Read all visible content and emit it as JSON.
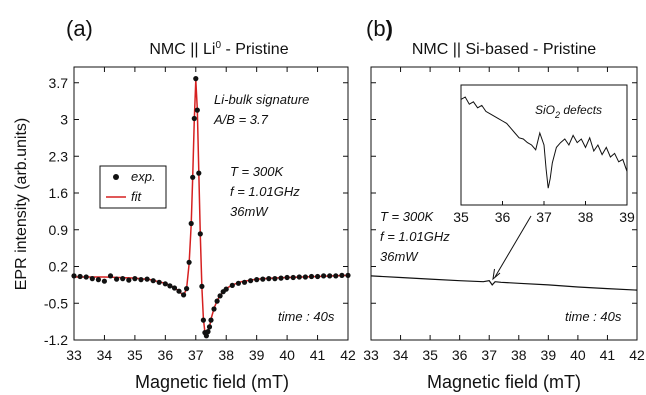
{
  "chart_data": [
    {
      "panel_label": "(a)",
      "title_prefix": "NMC || Li",
      "title_sup": "0",
      "title_suffix": " - Pristine",
      "type": "line",
      "xlabel": "Magnetic field (mT)",
      "ylabel": "EPR intensity (arb.units)",
      "xlim": [
        33,
        42
      ],
      "ylim": [
        -1.2,
        4.0
      ],
      "xticks": [
        33,
        34,
        35,
        36,
        37,
        38,
        39,
        40,
        41,
        42
      ],
      "yticks": [
        -1.2,
        -0.5,
        0.2,
        0.9,
        1.6,
        2.3,
        3,
        3.7
      ],
      "ytick_labels": [
        "-1.2",
        "-0.5",
        "0.2",
        "0.9",
        "1.6",
        "2.3",
        "3",
        "3.7"
      ],
      "legend": {
        "position": "center-left",
        "entries": [
          {
            "label": "exp.",
            "color": "#111111",
            "marker": "dot"
          },
          {
            "label": "fit",
            "color": "#d62020",
            "marker": "line"
          }
        ]
      },
      "annotations": {
        "signature_line1": "Li-bulk signature",
        "signature_line2": "A/B = 3.7",
        "temp": "T = 300K",
        "freq": "f = 1.01GHz",
        "power": "36mW",
        "time": "time : 40s"
      },
      "series": [
        {
          "name": "fit",
          "color": "#d62020",
          "x": [
            33.0,
            33.5,
            34.0,
            34.5,
            35.0,
            35.5,
            36.0,
            36.3,
            36.5,
            36.6,
            36.7,
            36.78,
            36.85,
            36.9,
            36.95,
            37.0,
            37.05,
            37.1,
            37.15,
            37.2,
            37.25,
            37.3,
            37.35,
            37.4,
            37.45,
            37.5,
            37.6,
            37.7,
            37.8,
            38.0,
            38.2,
            38.5,
            39.0,
            39.5,
            40.0,
            40.5,
            41.0,
            41.5,
            42.0
          ],
          "y": [
            0.0,
            0.0,
            0.0,
            -0.01,
            -0.02,
            -0.05,
            -0.12,
            -0.2,
            -0.3,
            -0.35,
            -0.22,
            0.25,
            1.0,
            1.9,
            3.0,
            3.75,
            3.2,
            2.0,
            0.8,
            -0.2,
            -0.8,
            -1.05,
            -1.1,
            -1.05,
            -0.95,
            -0.8,
            -0.6,
            -0.45,
            -0.35,
            -0.22,
            -0.15,
            -0.09,
            -0.04,
            -0.02,
            -0.01,
            0.0,
            0.01,
            0.02,
            0.03
          ]
        },
        {
          "name": "exp.",
          "color": "#111111",
          "x": [
            33.0,
            33.2,
            33.4,
            33.6,
            33.8,
            34.0,
            34.2,
            34.4,
            34.6,
            34.8,
            35.0,
            35.2,
            35.4,
            35.6,
            35.8,
            36.0,
            36.15,
            36.3,
            36.45,
            36.6,
            36.7,
            36.78,
            36.85,
            36.9,
            36.95,
            37.0,
            37.05,
            37.1,
            37.15,
            37.2,
            37.25,
            37.3,
            37.35,
            37.4,
            37.45,
            37.5,
            37.6,
            37.7,
            37.8,
            37.9,
            38.0,
            38.2,
            38.4,
            38.6,
            38.8,
            39.0,
            39.2,
            39.4,
            39.6,
            39.8,
            40.0,
            40.2,
            40.4,
            40.6,
            40.8,
            41.0,
            41.2,
            41.4,
            41.6,
            41.8,
            42.0
          ],
          "y": [
            0.02,
            0.01,
            0.0,
            -0.03,
            -0.05,
            -0.08,
            0.02,
            -0.04,
            -0.03,
            -0.06,
            -0.03,
            -0.05,
            -0.04,
            -0.07,
            -0.1,
            -0.13,
            -0.17,
            -0.21,
            -0.27,
            -0.34,
            -0.22,
            0.28,
            1.02,
            1.9,
            3.02,
            3.78,
            3.18,
            1.98,
            0.82,
            -0.18,
            -0.82,
            -1.06,
            -1.12,
            -1.04,
            -0.95,
            -0.82,
            -0.61,
            -0.46,
            -0.36,
            -0.28,
            -0.23,
            -0.16,
            -0.12,
            -0.1,
            -0.07,
            -0.05,
            -0.04,
            -0.03,
            -0.03,
            -0.02,
            -0.01,
            -0.01,
            0.0,
            0.0,
            0.01,
            0.01,
            0.02,
            0.02,
            0.02,
            0.03,
            0.03
          ]
        }
      ]
    },
    {
      "panel_label": "(b",
      "panel_label_bold": ")",
      "title": "NMC || Si-based - Pristine",
      "type": "line",
      "xlabel": "Magnetic field (mT)",
      "xlim": [
        33,
        42
      ],
      "ylim": [
        -1.2,
        4.0
      ],
      "xticks": [
        33,
        34,
        35,
        36,
        37,
        38,
        39,
        40,
        41,
        42
      ],
      "annotations": {
        "temp": "T = 300K",
        "freq": "f = 1.01GHz",
        "power": "36mW",
        "time": "time : 40s"
      },
      "series": [
        {
          "name": "",
          "color": "#111111",
          "x": [
            33.0,
            34.0,
            35.0,
            36.0,
            36.8,
            37.0,
            37.1,
            37.2,
            37.4,
            38.0,
            39.0,
            40.0,
            41.0,
            42.0
          ],
          "y": [
            0.02,
            -0.01,
            -0.04,
            -0.07,
            -0.09,
            -0.07,
            -0.15,
            -0.09,
            -0.1,
            -0.12,
            -0.15,
            -0.19,
            -0.22,
            -0.25
          ]
        }
      ],
      "inset": {
        "title_main": "SiO",
        "title_sub": "2",
        "title_tail": " defects",
        "xlim": [
          35,
          39
        ],
        "xticks": [
          35,
          36,
          37,
          38,
          39
        ],
        "ylim": [
          0,
          1
        ],
        "series": {
          "x": [
            35.0,
            35.1,
            35.2,
            35.3,
            35.4,
            35.5,
            35.6,
            35.7,
            35.8,
            35.9,
            36.0,
            36.1,
            36.2,
            36.3,
            36.4,
            36.5,
            36.6,
            36.7,
            36.8,
            36.9,
            37.0,
            37.05,
            37.1,
            37.15,
            37.2,
            37.3,
            37.4,
            37.5,
            37.6,
            37.7,
            37.8,
            37.9,
            38.0,
            38.1,
            38.2,
            38.3,
            38.4,
            38.5,
            38.6,
            38.7,
            38.8,
            38.9,
            39.0
          ],
          "y": [
            0.88,
            0.9,
            0.84,
            0.86,
            0.81,
            0.83,
            0.78,
            0.76,
            0.74,
            0.72,
            0.7,
            0.68,
            0.64,
            0.6,
            0.56,
            0.55,
            0.52,
            0.5,
            0.46,
            0.6,
            0.5,
            0.3,
            0.14,
            0.22,
            0.35,
            0.48,
            0.52,
            0.55,
            0.5,
            0.58,
            0.52,
            0.55,
            0.48,
            0.56,
            0.45,
            0.5,
            0.42,
            0.48,
            0.4,
            0.43,
            0.36,
            0.38,
            0.28
          ]
        }
      }
    }
  ]
}
